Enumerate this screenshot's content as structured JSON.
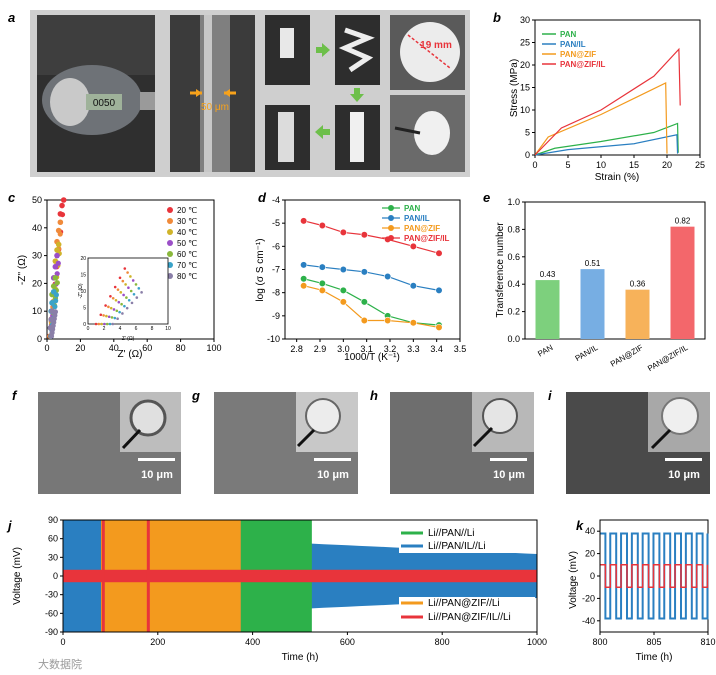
{
  "panel_letters": [
    "a",
    "b",
    "c",
    "d",
    "e",
    "f",
    "g",
    "h",
    "i",
    "j",
    "k"
  ],
  "photo_labels": {
    "thickness": "50 μm",
    "diameter": "19 mm",
    "micrometer_reading": "0050"
  },
  "sem_scale": "10 μm",
  "watermark": "大数据院",
  "colors": {
    "green": "#2db14a",
    "blue": "#2a7fc1",
    "orange": "#f39a1e",
    "red": "#e8343b",
    "teal": "#39b39b"
  },
  "chart_data": [
    {
      "panel": "b",
      "type": "line",
      "xlabel": "Strain (%)",
      "ylabel": "Stress (MPa)",
      "xlim": [
        0,
        25
      ],
      "ylim": [
        0,
        30
      ],
      "xticks": [
        "0",
        "5",
        "10",
        "15",
        "20",
        "25"
      ],
      "yticks": [
        "0",
        "5",
        "10",
        "15",
        "20",
        "25",
        "30"
      ],
      "legend": [
        "PAN",
        "PAN/IL",
        "PAN@ZIF",
        "PAN@ZIF/IL"
      ],
      "series": [
        {
          "name": "PAN",
          "color": "#2db14a",
          "x": [
            0,
            3,
            10,
            18,
            21.6,
            21.7
          ],
          "y": [
            0,
            1.5,
            3,
            5,
            7,
            0.5
          ]
        },
        {
          "name": "PAN/IL",
          "color": "#2a7fc1",
          "x": [
            0,
            5,
            15,
            21.5,
            21.6
          ],
          "y": [
            0,
            1.2,
            2.5,
            4.5,
            0.3
          ]
        },
        {
          "name": "PAN@ZIF",
          "color": "#f39a1e",
          "x": [
            0,
            2,
            10,
            19.8,
            20
          ],
          "y": [
            0,
            4,
            9,
            16,
            0.3
          ]
        },
        {
          "name": "PAN@ZIF/IL",
          "color": "#e8343b",
          "x": [
            0,
            4,
            10,
            18,
            21.8,
            22
          ],
          "y": [
            0,
            6,
            10,
            17.5,
            23.5,
            11
          ]
        }
      ]
    },
    {
      "panel": "c",
      "type": "scatter",
      "xlabel": "Z' (Ω)",
      "ylabel": "-Z'' (Ω)",
      "xlim": [
        0,
        100
      ],
      "ylim": [
        0,
        50
      ],
      "xticks": [
        "0",
        "20",
        "40",
        "60",
        "80",
        "100"
      ],
      "yticks": [
        "0",
        "10",
        "20",
        "30",
        "40",
        "50"
      ],
      "inset_axis_labels": [
        "Z' (Ω)",
        "-Z'' (Ω)"
      ],
      "inset_xticks": [
        "0",
        "2",
        "4",
        "6",
        "8",
        "10"
      ],
      "inset_yticks": [
        "0",
        "5",
        "10",
        "15",
        "20"
      ],
      "legend": [
        "20 ℃",
        "30 ℃",
        "40 ℃",
        "50 ℃",
        "60 ℃",
        "70 ℃",
        "80 ℃"
      ],
      "series": [
        {
          "name": "20 ℃",
          "color": "#e8343b",
          "x": [
            8,
            9,
            10
          ],
          "y": [
            45,
            48,
            50
          ]
        },
        {
          "name": "30 ℃",
          "color": "#f08a3a",
          "x": [
            6,
            7,
            8
          ],
          "y": [
            35,
            39,
            42
          ]
        },
        {
          "name": "40 ℃",
          "color": "#d0b42a",
          "x": [
            5,
            6,
            7
          ],
          "y": [
            28,
            32,
            34
          ]
        },
        {
          "name": "50 ℃",
          "color": "#9b4fc7",
          "x": [
            4,
            5,
            6
          ],
          "y": [
            22,
            26,
            30
          ]
        },
        {
          "name": "60 ℃",
          "color": "#8ab83c",
          "x": [
            3,
            4,
            5
          ],
          "y": [
            16,
            19,
            22
          ]
        },
        {
          "name": "70 ℃",
          "color": "#3aa3c9",
          "x": [
            2.5,
            3,
            4
          ],
          "y": [
            10,
            13,
            17
          ]
        },
        {
          "name": "80 ℃",
          "color": "#8a7fa8",
          "x": [
            2,
            2.5,
            3
          ],
          "y": [
            4,
            7,
            10
          ]
        }
      ]
    },
    {
      "panel": "d",
      "type": "line",
      "xlabel": "1000/T (K⁻¹)",
      "ylabel": "log (σ S cm⁻¹)",
      "xlim": [
        2.75,
        3.5
      ],
      "ylim": [
        -10,
        -4
      ],
      "xticks": [
        "2.8",
        "2.9",
        "3.0",
        "3.1",
        "3.2",
        "3.3",
        "3.4",
        "3.5"
      ],
      "yticks": [
        "-10",
        "-9",
        "-8",
        "-7",
        "-6",
        "-5",
        "-4"
      ],
      "legend": [
        "PAN",
        "PAN/IL",
        "PAN@ZIF",
        "PAN@ZIF/IL"
      ],
      "x": [
        2.83,
        2.91,
        3.0,
        3.09,
        3.19,
        3.3,
        3.41
      ],
      "series": [
        {
          "name": "PAN",
          "color": "#2db14a",
          "values": [
            -7.4,
            -7.6,
            -7.9,
            -8.4,
            -9.0,
            -9.3,
            -9.4
          ]
        },
        {
          "name": "PAN/IL",
          "color": "#2a7fc1",
          "values": [
            -6.8,
            -6.9,
            -7.0,
            -7.1,
            -7.3,
            -7.7,
            -7.9
          ]
        },
        {
          "name": "PAN@ZIF",
          "color": "#f39a1e",
          "values": [
            -7.7,
            -7.9,
            -8.4,
            -9.2,
            -9.2,
            -9.3,
            -9.5
          ]
        },
        {
          "name": "PAN@ZIF/IL",
          "color": "#e8343b",
          "values": [
            -4.9,
            -5.1,
            -5.4,
            -5.5,
            -5.7,
            -6.0,
            -6.3
          ]
        }
      ]
    },
    {
      "panel": "e",
      "type": "bar",
      "ylabel": "Transference number",
      "ylim": [
        0,
        1.0
      ],
      "yticks": [
        "0.0",
        "0.2",
        "0.4",
        "0.6",
        "0.8",
        "1.0"
      ],
      "categories": [
        "PAN",
        "PAN/IL",
        "PAN@ZIF",
        "PAN@ZIF/IL"
      ],
      "values": [
        0.43,
        0.51,
        0.36,
        0.82
      ],
      "value_labels": [
        "0.43",
        "0.51",
        "0.36",
        "0.82"
      ],
      "colors": [
        "#7dd07d",
        "#77aee3",
        "#f7b25a",
        "#f3676b"
      ]
    },
    {
      "panel": "j",
      "type": "area",
      "xlabel": "Time (h)",
      "ylabel": "Voltage (mV)",
      "xlim": [
        0,
        1000
      ],
      "ylim": [
        -90,
        90
      ],
      "xticks": [
        "0",
        "200",
        "400",
        "600",
        "800",
        "1000"
      ],
      "yticks": [
        "-90",
        "-60",
        "-30",
        "0",
        "30",
        "60",
        "90"
      ],
      "legend": [
        "Li//PAN//Li",
        "Li//PAN/IL//Li",
        "Li//PAN@ZIF//Li",
        "Li//PAN@ZIF/IL//Li"
      ],
      "series": [
        {
          "name": "Li//PAN//Li",
          "color": "#2db14a",
          "end_h": 525,
          "amplitude_mv": 90
        },
        {
          "name": "Li//PAN/IL//Li",
          "color": "#2a7fc1",
          "end_h": 1000,
          "amplitude_mv": [
            90,
            35
          ]
        },
        {
          "name": "Li//PAN@ZIF//Li",
          "color": "#f39a1e",
          "end_h": 375,
          "amplitude_mv": 90
        },
        {
          "name": "Li//PAN@ZIF/IL//Li",
          "color": "#e8343b",
          "end_h": 1000,
          "amplitude_mv": 10
        }
      ]
    },
    {
      "panel": "k",
      "type": "line",
      "xlabel": "Time (h)",
      "ylabel": "Voltage (mV)",
      "xlim": [
        800,
        810
      ],
      "ylim": [
        -50,
        50
      ],
      "xticks": [
        "800",
        "805",
        "810"
      ],
      "yticks": [
        "-40",
        "-20",
        "0",
        "20",
        "40"
      ],
      "series": [
        {
          "name": "Li//PAN/IL//Li",
          "color": "#2a7fc1",
          "amplitude_mv": 38,
          "cycles": 10
        },
        {
          "name": "Li//PAN@ZIF/IL//Li",
          "color": "#e8343b",
          "amplitude_mv": 10,
          "cycles": 10
        }
      ]
    }
  ]
}
